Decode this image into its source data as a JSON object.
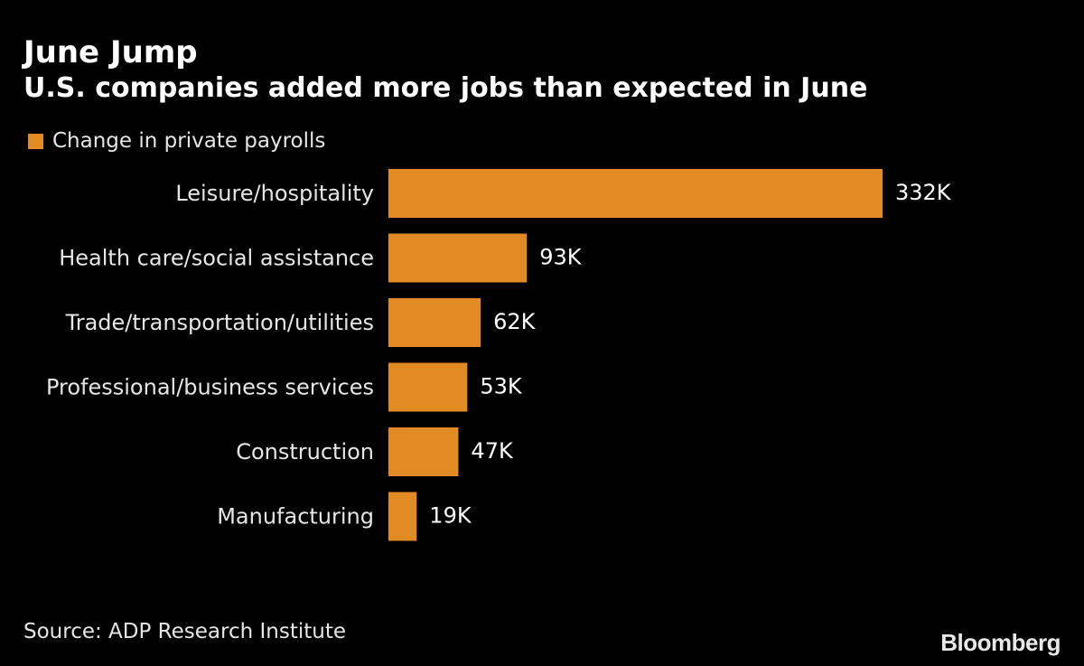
{
  "chart_data": {
    "type": "bar",
    "orientation": "horizontal",
    "title": "June Jump",
    "subtitle": "U.S. companies added more jobs than expected in June",
    "categories": [
      "Leisure/hospitality",
      "Health care/social assistance",
      "Trade/transportation/utilities",
      "Professional/business services",
      "Construction",
      "Manufacturing"
    ],
    "series": [
      {
        "name": "Change in private payrolls",
        "values": [
          332,
          93,
          62,
          53,
          47,
          19
        ],
        "labels": [
          "332K",
          "93K",
          "62K",
          "53K",
          "47K",
          "19K"
        ],
        "color": "#e28b24"
      }
    ],
    "xlim": [
      0,
      332
    ],
    "grid": false,
    "legend_position": "top-left"
  },
  "footer": {
    "source": "Source: ADP Research Institute",
    "brand": "Bloomberg"
  }
}
